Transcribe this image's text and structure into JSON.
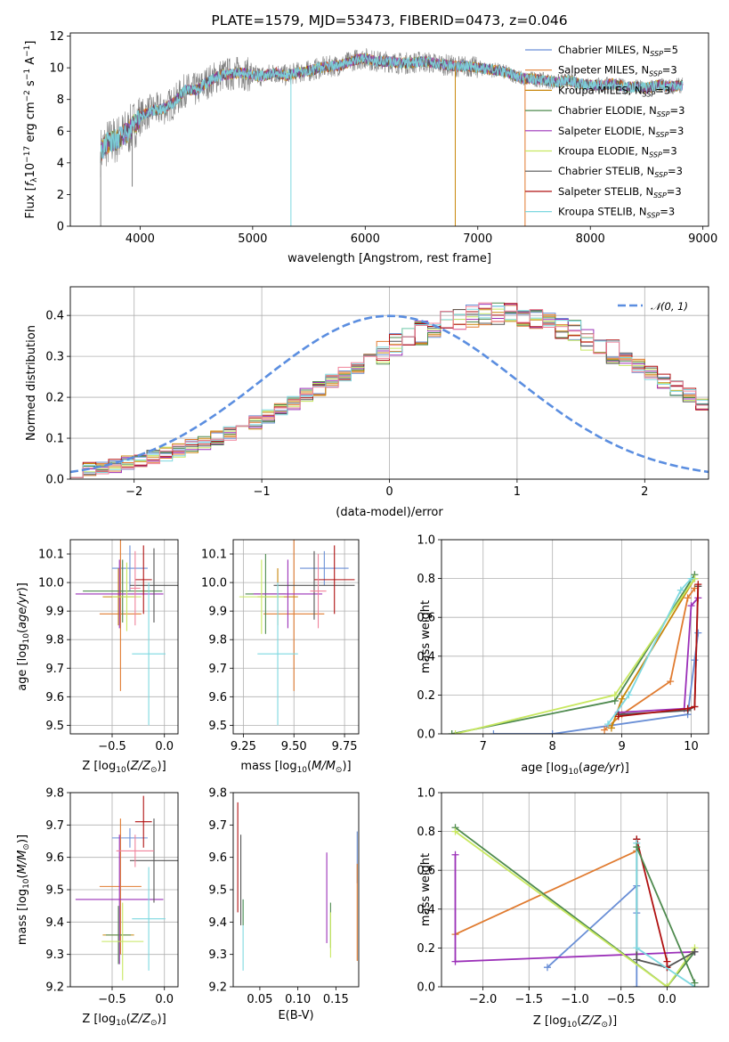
{
  "colors": {
    "chabrier_miles": "#6a8fd6",
    "salpeter_miles": "#e07b30",
    "kroupa_miles": "#c8860b",
    "chabrier_elodie": "#4e8a4e",
    "salpeter_elodie": "#9b30b8",
    "kroupa_elodie": "#c8e860",
    "chabrier_stelib": "#555555",
    "salpeter_stelib": "#b01010",
    "kroupa_stelib": "#7dd8e0",
    "pink": "#f0829a",
    "data": "#7f7f7f",
    "normal": "#5b8ee0"
  },
  "chart_data": [
    {
      "id": "spectrum",
      "type": "line",
      "title": "PLATE=1579, MJD=53473, FIBERID=0473, z=0.046",
      "xlabel": "wavelength [Angstrom, rest frame]",
      "ylabel": "Flux [f",
      "ylabel_html": "Flux [fλ10⁻¹⁷ erg cm⁻² s⁻¹ A⁻¹]",
      "xlim": [
        3380,
        9050
      ],
      "ylim": [
        0,
        12.2
      ],
      "xticks": [
        4000,
        5000,
        6000,
        7000,
        8000,
        9000
      ],
      "yticks": [
        0,
        2,
        4,
        6,
        8,
        10,
        12
      ],
      "grid": false,
      "legend_position": "top-right",
      "legend": [
        "Chabrier MILES, NSSP=5",
        "Salpeter MILES, NSSP=3",
        "Kroupa MILES, NSSP=3",
        "Chabrier ELODIE, NSSP=3",
        "Salpeter ELODIE, NSSP=3",
        "Kroupa ELODIE, NSSP=3",
        "Chabrier STELIB, NSSP=3",
        "Salpeter STELIB, NSSP=3",
        "Kroupa STELIB, NSSP=3"
      ],
      "continuum": {
        "x": [
          3650,
          3700,
          3800,
          3900,
          4000,
          4100,
          4200,
          4300,
          4400,
          4500,
          4600,
          4700,
          4800,
          4900,
          5000,
          5100,
          5200,
          5300,
          5400,
          5500,
          5600,
          5700,
          5800,
          5900,
          6000,
          6100,
          6200,
          6300,
          6400,
          6500,
          6600,
          6700,
          6800,
          6900,
          7000,
          7100,
          7200,
          7300,
          7400,
          7500,
          7600,
          7700,
          7800,
          7900,
          8000,
          8100,
          8200,
          8300,
          8400,
          8500,
          8600,
          8700,
          8820
        ],
        "y": [
          4.7,
          5.2,
          5.5,
          6.0,
          6.9,
          7.3,
          7.4,
          7.8,
          8.6,
          8.6,
          9.1,
          9.5,
          9.6,
          9.7,
          9.5,
          9.5,
          9.7,
          9.5,
          9.7,
          9.8,
          10.0,
          10.1,
          10.2,
          10.5,
          10.6,
          10.4,
          10.4,
          10.3,
          10.3,
          10.4,
          10.3,
          10.2,
          10.1,
          10.1,
          10.0,
          9.9,
          9.8,
          9.6,
          9.3,
          9.3,
          9.2,
          9.1,
          9.2,
          9.0,
          8.9,
          8.9,
          9.0,
          8.8,
          8.8,
          8.7,
          8.9,
          8.8,
          8.9
        ]
      },
      "dips": [
        {
          "x": 3650,
          "y": 0.0
        },
        {
          "x": 3930,
          "y": 2.5
        },
        {
          "x": 5340,
          "y": 0.0
        },
        {
          "x": 6800,
          "y": 0.0
        },
        {
          "x": 7420,
          "y": 0.0
        }
      ]
    },
    {
      "id": "residuals",
      "type": "histogram",
      "xlabel": "(data-model)/error",
      "ylabel": "Normed distribution",
      "xlim": [
        -2.5,
        2.5
      ],
      "ylim": [
        0,
        0.47
      ],
      "xticks": [
        -2,
        -1,
        0,
        1,
        2
      ],
      "yticks": [
        0.0,
        0.1,
        0.2,
        0.3,
        0.4
      ],
      "grid": true,
      "legend_position": "top-right",
      "legend": [
        "𝒩(0, 1)"
      ],
      "bin_width": 0.1,
      "reference_values": [
        0.022,
        0.025,
        0.029,
        0.034,
        0.04,
        0.046,
        0.053,
        0.061,
        0.07,
        0.079,
        0.09,
        0.101,
        0.113,
        0.126,
        0.14,
        0.155,
        0.171,
        0.187,
        0.204,
        0.222,
        0.24,
        0.258,
        0.276,
        0.294,
        0.311,
        0.328,
        0.344,
        0.358,
        0.372,
        0.384,
        0.392,
        0.398,
        0.403,
        0.404,
        0.403,
        0.398,
        0.392,
        0.384,
        0.372,
        0.358,
        0.344,
        0.328,
        0.311,
        0.294,
        0.276,
        0.258,
        0.24,
        0.222,
        0.204,
        0.187
      ]
    },
    {
      "id": "age_vs_Z",
      "type": "errorbar",
      "xlabel": "Z [log10(Z/Z⊙)]",
      "ylabel": "age  [log10(age/yr)]",
      "xlim": [
        -0.9,
        0.13
      ],
      "ylim": [
        9.47,
        10.15
      ],
      "xticks": [
        -0.5,
        0.0
      ],
      "xtick_labels": [
        "−0.5",
        "0.0"
      ],
      "yticks": [
        9.5,
        9.6,
        9.7,
        9.8,
        9.9,
        10.0,
        10.1
      ],
      "grid": true,
      "points": [
        {
          "key": "chabrier_miles",
          "x": -0.33,
          "xerr": 0.17,
          "y": 10.05,
          "yerr": 0.08
        },
        {
          "key": "salpeter_miles",
          "x": -0.42,
          "xerr": 0.2,
          "y": 9.89,
          "yerr": 0.27
        },
        {
          "key": "kroupa_miles",
          "x": -0.44,
          "xerr": 0.15,
          "y": 9.95,
          "yerr": 0.1
        },
        {
          "key": "chabrier_elodie",
          "x": -0.4,
          "xerr": 0.38,
          "y": 9.97,
          "yerr": 0.11
        },
        {
          "key": "salpeter_elodie",
          "x": -0.43,
          "xerr": 0.42,
          "y": 9.96,
          "yerr": 0.12
        },
        {
          "key": "kroupa_elodie",
          "x": -0.36,
          "xerr": 0.14,
          "y": 9.95,
          "yerr": 0.12
        },
        {
          "key": "chabrier_stelib",
          "x": -0.1,
          "xerr": 0.23,
          "y": 9.99,
          "yerr": 0.13
        },
        {
          "key": "salpeter_stelib",
          "x": -0.2,
          "xerr": 0.08,
          "y": 10.01,
          "yerr": 0.12
        },
        {
          "key": "kroupa_stelib",
          "x": -0.15,
          "xerr": 0.16,
          "y": 9.75,
          "yerr": 0.25
        },
        {
          "key": "pink",
          "x": -0.28,
          "xerr": 0.05,
          "y": 9.98,
          "yerr": 0.13
        }
      ]
    },
    {
      "id": "age_vs_mass",
      "type": "errorbar",
      "xlabel": "mass [log10(M/M⊙)]",
      "ylabel": "",
      "xlim": [
        9.2,
        9.82
      ],
      "ylim": [
        9.47,
        10.15
      ],
      "xticks": [
        9.25,
        9.5,
        9.75
      ],
      "xtick_labels": [
        "9.25",
        "9.50",
        "9.75"
      ],
      "yticks": [
        9.5,
        9.6,
        9.7,
        9.8,
        9.9,
        10.0,
        10.1
      ],
      "grid": true,
      "points": [
        {
          "key": "chabrier_miles",
          "x": 9.65,
          "xerr": 0.12,
          "y": 10.05,
          "yerr": 0.06
        },
        {
          "key": "salpeter_miles",
          "x": 9.5,
          "xerr": 0.15,
          "y": 9.89,
          "yerr": 0.27
        },
        {
          "key": "kroupa_miles",
          "x": 9.42,
          "xerr": 0.1,
          "y": 9.95,
          "yerr": 0.1
        },
        {
          "key": "chabrier_elodie",
          "x": 9.36,
          "xerr": 0.1,
          "y": 9.96,
          "yerr": 0.14
        },
        {
          "key": "salpeter_elodie",
          "x": 9.47,
          "xerr": 0.17,
          "y": 9.96,
          "yerr": 0.12
        },
        {
          "key": "kroupa_elodie",
          "x": 9.34,
          "xerr": 0.11,
          "y": 9.95,
          "yerr": 0.13
        },
        {
          "key": "chabrier_stelib",
          "x": 9.6,
          "xerr": 0.2,
          "y": 9.99,
          "yerr": 0.12
        },
        {
          "key": "salpeter_stelib",
          "x": 9.7,
          "xerr": 0.1,
          "y": 10.01,
          "yerr": 0.12
        },
        {
          "key": "kroupa_stelib",
          "x": 9.42,
          "xerr": 0.1,
          "y": 9.75,
          "yerr": 0.25
        },
        {
          "key": "pink",
          "x": 9.62,
          "xerr": 0.04,
          "y": 9.97,
          "yerr": 0.13
        }
      ]
    },
    {
      "id": "weight_vs_age",
      "type": "line",
      "xlabel": "age  [log10(age/yr)]",
      "ylabel": "mass weight",
      "xlim": [
        6.4,
        10.25
      ],
      "ylim": [
        0,
        1
      ],
      "xticks": [
        7,
        8,
        9,
        10
      ],
      "yticks": [
        0.0,
        0.2,
        0.4,
        0.6,
        0.8,
        1.0
      ],
      "grid": true,
      "series": [
        {
          "key": "chabrier_miles",
          "x": [
            7.15,
            8.0,
            9.95,
            10.05,
            10.1
          ],
          "y": [
            0.0,
            0.0,
            0.1,
            0.38,
            0.52
          ]
        },
        {
          "key": "salpeter_miles",
          "x": [
            8.75,
            9.0,
            9.7,
            9.95,
            10.05
          ],
          "y": [
            0.02,
            0.1,
            0.27,
            0.7,
            0.75
          ]
        },
        {
          "key": "kroupa_miles",
          "x": [
            8.85,
            9.0,
            10.05
          ],
          "y": [
            0.03,
            0.18,
            0.8
          ]
        },
        {
          "key": "chabrier_elodie",
          "x": [
            6.55,
            8.9,
            10.05
          ],
          "y": [
            0.0,
            0.17,
            0.82
          ]
        },
        {
          "key": "salpeter_elodie",
          "x": [
            8.95,
            9.9,
            10.0,
            10.1
          ],
          "y": [
            0.11,
            0.13,
            0.66,
            0.7
          ]
        },
        {
          "key": "kroupa_elodie",
          "x": [
            6.6,
            8.9,
            10.05
          ],
          "y": [
            0.0,
            0.2,
            0.8
          ]
        },
        {
          "key": "chabrier_stelib",
          "x": [
            8.95,
            9.95,
            10.05,
            10.1
          ],
          "y": [
            0.1,
            0.12,
            0.14,
            0.76
          ]
        },
        {
          "key": "salpeter_stelib",
          "x": [
            8.95,
            9.95,
            10.05,
            10.1
          ],
          "y": [
            0.09,
            0.13,
            0.14,
            0.77
          ]
        },
        {
          "key": "kroupa_stelib",
          "x": [
            8.8,
            9.1,
            9.85,
            10.0
          ],
          "y": [
            0.05,
            0.2,
            0.74,
            0.8
          ]
        }
      ]
    },
    {
      "id": "mass_vs_Z",
      "type": "errorbar",
      "xlabel": "Z [log10(Z/Z⊙)]",
      "ylabel": "mass [log10(M/M⊙)]",
      "xlim": [
        -0.9,
        0.13
      ],
      "ylim": [
        9.2,
        9.8
      ],
      "xticks": [
        -0.5,
        0.0
      ],
      "xtick_labels": [
        "−0.5",
        "0.0"
      ],
      "yticks": [
        9.2,
        9.3,
        9.4,
        9.5,
        9.6,
        9.7,
        9.8
      ],
      "grid": true,
      "points": [
        {
          "key": "chabrier_miles",
          "x": -0.33,
          "xerr": 0.17,
          "y": 9.66,
          "yerr": 0.03
        },
        {
          "key": "salpeter_miles",
          "x": -0.42,
          "xerr": 0.2,
          "y": 9.51,
          "yerr": 0.21
        },
        {
          "key": "kroupa_miles",
          "x": -0.44,
          "xerr": 0.15,
          "y": 9.36,
          "yerr": 0.08
        },
        {
          "key": "chabrier_elodie",
          "x": -0.44,
          "xerr": 0.12,
          "y": 9.36,
          "yerr": 0.09
        },
        {
          "key": "salpeter_elodie",
          "x": -0.43,
          "xerr": 0.42,
          "y": 9.47,
          "yerr": 0.2
        },
        {
          "key": "kroupa_elodie",
          "x": -0.4,
          "xerr": 0.2,
          "y": 9.34,
          "yerr": 0.12
        },
        {
          "key": "chabrier_stelib",
          "x": -0.1,
          "xerr": 0.23,
          "y": 9.59,
          "yerr": 0.13
        },
        {
          "key": "salpeter_stelib",
          "x": -0.2,
          "xerr": 0.08,
          "y": 9.71,
          "yerr": 0.08
        },
        {
          "key": "kroupa_stelib",
          "x": -0.15,
          "xerr": 0.16,
          "y": 9.41,
          "yerr": 0.16
        },
        {
          "key": "pink",
          "x": -0.28,
          "xerr": 0.18,
          "y": 9.62,
          "yerr": 0.05
        }
      ]
    },
    {
      "id": "mass_vs_EBV",
      "type": "errorbar",
      "xlabel": "E(B-V)",
      "ylabel": "",
      "xlim": [
        0.015,
        0.18
      ],
      "ylim": [
        9.2,
        9.8
      ],
      "xticks": [
        0.05,
        0.1,
        0.15
      ],
      "xtick_labels": [
        "0.05",
        "0.10",
        "0.15"
      ],
      "yticks": [
        9.2,
        9.3,
        9.4,
        9.5,
        9.6,
        9.7,
        9.8
      ],
      "grid": false,
      "points": [
        {
          "key": "salpeter_stelib",
          "x": 0.021,
          "xerr": 0.0,
          "y": 9.6,
          "yerr": 0.17
        },
        {
          "key": "chabrier_stelib",
          "x": 0.025,
          "xerr": 0.0,
          "y": 9.53,
          "yerr": 0.14
        },
        {
          "key": "kroupa_stelib",
          "x": 0.028,
          "xerr": 0.0,
          "y": 9.36,
          "yerr": 0.11
        },
        {
          "key": "chabrier_elodie",
          "x": 0.028,
          "xerr": 0.0,
          "y": 9.43,
          "yerr": 0.04
        },
        {
          "key": "salpeter_elodie",
          "x": 0.138,
          "xerr": 0.0,
          "y": 9.475,
          "yerr": 0.14
        },
        {
          "key": "chabrier_elodie",
          "x": 0.143,
          "xerr": 0.0,
          "y": 9.39,
          "yerr": 0.07
        },
        {
          "key": "kroupa_elodie",
          "x": 0.143,
          "xerr": 0.0,
          "y": 9.36,
          "yerr": 0.07
        },
        {
          "key": "chabrier_miles",
          "x": 0.178,
          "xerr": 0.0,
          "y": 9.6,
          "yerr": 0.08
        },
        {
          "key": "salpeter_miles",
          "x": 0.178,
          "xerr": 0.0,
          "y": 9.43,
          "yerr": 0.15
        }
      ]
    },
    {
      "id": "weight_vs_Z",
      "type": "line",
      "xlabel": "Z [log10(Z/Z⊙)]",
      "ylabel": "mass weight",
      "xlim": [
        -2.45,
        0.45
      ],
      "ylim": [
        0,
        1
      ],
      "xticks": [
        -2.0,
        -1.5,
        -1.0,
        -0.5,
        0.0
      ],
      "xtick_labels": [
        "−2.0",
        "−1.5",
        "−1.0",
        "−0.5",
        "0.0"
      ],
      "yticks": [
        0.0,
        0.2,
        0.4,
        0.6,
        0.8,
        1.0
      ],
      "grid": true,
      "series": [
        {
          "key": "chabrier_miles",
          "x": [
            -1.3,
            -0.33,
            -0.33,
            -0.33
          ],
          "y": [
            0.1,
            0.52,
            0.38,
            0.0
          ]
        },
        {
          "key": "salpeter_miles",
          "x": [
            -2.3,
            -0.33
          ],
          "y": [
            0.27,
            0.7
          ]
        },
        {
          "key": "chabrier_elodie",
          "x": [
            -2.3,
            0.0,
            0.3
          ],
          "y": [
            0.82,
            0.0,
            0.18
          ]
        },
        {
          "key": "salpeter_elodie",
          "x": [
            -2.3,
            -2.3,
            0.3
          ],
          "y": [
            0.68,
            0.13,
            0.18
          ]
        },
        {
          "key": "kroupa_elodie",
          "x": [
            -2.3,
            0.0,
            0.3
          ],
          "y": [
            0.8,
            0.0,
            0.2
          ]
        },
        {
          "key": "chabrier_stelib",
          "x": [
            -0.33,
            -0.33,
            0.0,
            0.3
          ],
          "y": [
            0.76,
            0.14,
            0.1,
            0.18
          ]
        },
        {
          "key": "salpeter_stelib",
          "x": [
            -0.33,
            0.0,
            0.0
          ],
          "y": [
            0.76,
            0.13,
            0.1
          ]
        },
        {
          "key": "kroupa_stelib",
          "x": [
            -0.33,
            -0.33,
            0.3
          ],
          "y": [
            0.74,
            0.2,
            0.0
          ]
        },
        {
          "key": "chabrier_elodie",
          "x": [
            -0.33,
            0.3
          ],
          "y": [
            0.72,
            0.02
          ]
        }
      ]
    }
  ]
}
